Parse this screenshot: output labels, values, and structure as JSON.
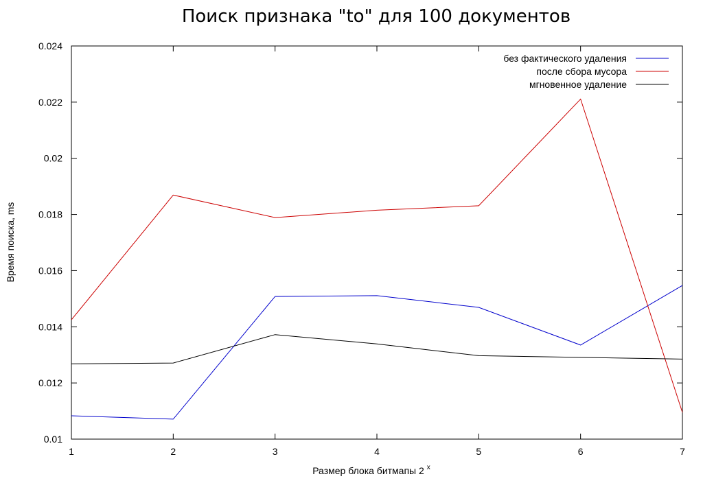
{
  "chart_data": {
    "type": "line",
    "title": "Поиск признака \"to\" для 100 документов",
    "xlabel": "Размер блока битмапы 2",
    "xlabel_superscript": "x",
    "ylabel": "Время поиска, ms",
    "x": [
      1,
      2,
      3,
      4,
      5,
      6,
      7
    ],
    "x_ticks": [
      "1",
      "2",
      "3",
      "4",
      "5",
      "6",
      "7"
    ],
    "xlim": [
      1,
      7
    ],
    "ylim": [
      0.01,
      0.024
    ],
    "y_ticks": [
      "0.01",
      "0.012",
      "0.014",
      "0.016",
      "0.018",
      "0.02",
      "0.022",
      "0.024"
    ],
    "y_tick_values": [
      0.01,
      0.012,
      0.014,
      0.016,
      0.018,
      0.02,
      0.022,
      0.024
    ],
    "grid": false,
    "legend_position": "top-right",
    "series": [
      {
        "name": "без фактического удаления",
        "color": "#0000cc",
        "values": [
          0.01083,
          0.01071,
          0.01508,
          0.01511,
          0.01469,
          0.01335,
          0.01547
        ]
      },
      {
        "name": "после сбора мусора",
        "color": "#cc0000",
        "values": [
          0.01425,
          0.01869,
          0.01789,
          0.01815,
          0.01831,
          0.02211,
          0.01095
        ]
      },
      {
        "name": "мгновенное удаление",
        "color": "#000000",
        "values": [
          0.01268,
          0.01271,
          0.01372,
          0.01339,
          0.01297,
          0.01291,
          0.01285
        ]
      }
    ]
  }
}
